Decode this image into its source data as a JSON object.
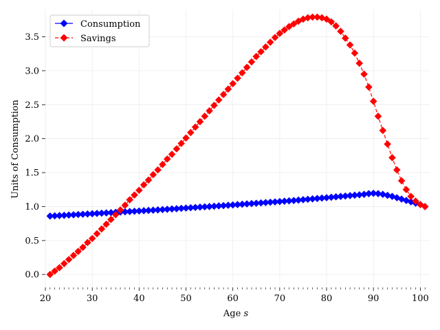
{
  "chart_data": {
    "type": "line",
    "xlabel": "Age",
    "xlabel_var": "s",
    "ylabel": "Units of Consumption",
    "xlim": [
      20,
      102
    ],
    "ylim": [
      -0.19,
      3.9
    ],
    "xticks": [
      20,
      30,
      40,
      50,
      60,
      70,
      80,
      90,
      100
    ],
    "yticks": [
      0.0,
      0.5,
      1.0,
      1.5,
      2.0,
      2.5,
      3.0,
      3.5
    ],
    "grid": true,
    "legend": "top-left",
    "x": [
      21,
      22,
      23,
      24,
      25,
      26,
      27,
      28,
      29,
      30,
      31,
      32,
      33,
      34,
      35,
      36,
      37,
      38,
      39,
      40,
      41,
      42,
      43,
      44,
      45,
      46,
      47,
      48,
      49,
      50,
      51,
      52,
      53,
      54,
      55,
      56,
      57,
      58,
      59,
      60,
      61,
      62,
      63,
      64,
      65,
      66,
      67,
      68,
      69,
      70,
      71,
      72,
      73,
      74,
      75,
      76,
      77,
      78,
      79,
      80,
      81,
      82,
      83,
      84,
      85,
      86,
      87,
      88,
      89,
      90,
      91,
      92,
      93,
      94,
      95,
      96,
      97,
      98,
      99,
      100,
      101
    ],
    "series": [
      {
        "name": "Consumption",
        "color": "#0000ff",
        "linestyle": "solid",
        "marker": "diamond",
        "values": [
          0.86,
          0.863,
          0.867,
          0.871,
          0.875,
          0.879,
          0.883,
          0.887,
          0.891,
          0.895,
          0.899,
          0.903,
          0.907,
          0.911,
          0.915,
          0.919,
          0.923,
          0.927,
          0.931,
          0.935,
          0.939,
          0.943,
          0.947,
          0.951,
          0.956,
          0.96,
          0.965,
          0.969,
          0.974,
          0.978,
          0.983,
          0.987,
          0.992,
          0.996,
          1.0,
          1.005,
          1.01,
          1.014,
          1.019,
          1.024,
          1.029,
          1.034,
          1.039,
          1.044,
          1.049,
          1.054,
          1.059,
          1.064,
          1.069,
          1.074,
          1.079,
          1.084,
          1.089,
          1.095,
          1.101,
          1.107,
          1.113,
          1.119,
          1.125,
          1.131,
          1.137,
          1.143,
          1.149,
          1.155,
          1.161,
          1.167,
          1.173,
          1.18,
          1.19,
          1.195,
          1.19,
          1.18,
          1.165,
          1.15,
          1.13,
          1.11,
          1.09,
          1.07,
          1.05,
          1.03,
          1.0
        ]
      },
      {
        "name": "Savings",
        "color": "#ff0000",
        "linestyle": "dashed",
        "marker": "diamond",
        "values": [
          0.0,
          0.05,
          0.1,
          0.16,
          0.22,
          0.28,
          0.34,
          0.4,
          0.47,
          0.53,
          0.6,
          0.67,
          0.74,
          0.81,
          0.88,
          0.95,
          1.02,
          1.1,
          1.17,
          1.24,
          1.32,
          1.39,
          1.47,
          1.54,
          1.62,
          1.7,
          1.77,
          1.85,
          1.93,
          2.01,
          2.09,
          2.17,
          2.25,
          2.33,
          2.41,
          2.49,
          2.57,
          2.65,
          2.73,
          2.81,
          2.89,
          2.97,
          3.05,
          3.13,
          3.21,
          3.28,
          3.35,
          3.42,
          3.49,
          3.55,
          3.6,
          3.65,
          3.69,
          3.73,
          3.76,
          3.78,
          3.79,
          3.79,
          3.78,
          3.76,
          3.72,
          3.66,
          3.58,
          3.48,
          3.38,
          3.26,
          3.11,
          2.95,
          2.76,
          2.55,
          2.33,
          2.12,
          1.92,
          1.72,
          1.54,
          1.38,
          1.25,
          1.15,
          1.08,
          1.03,
          1.0
        ]
      }
    ]
  }
}
